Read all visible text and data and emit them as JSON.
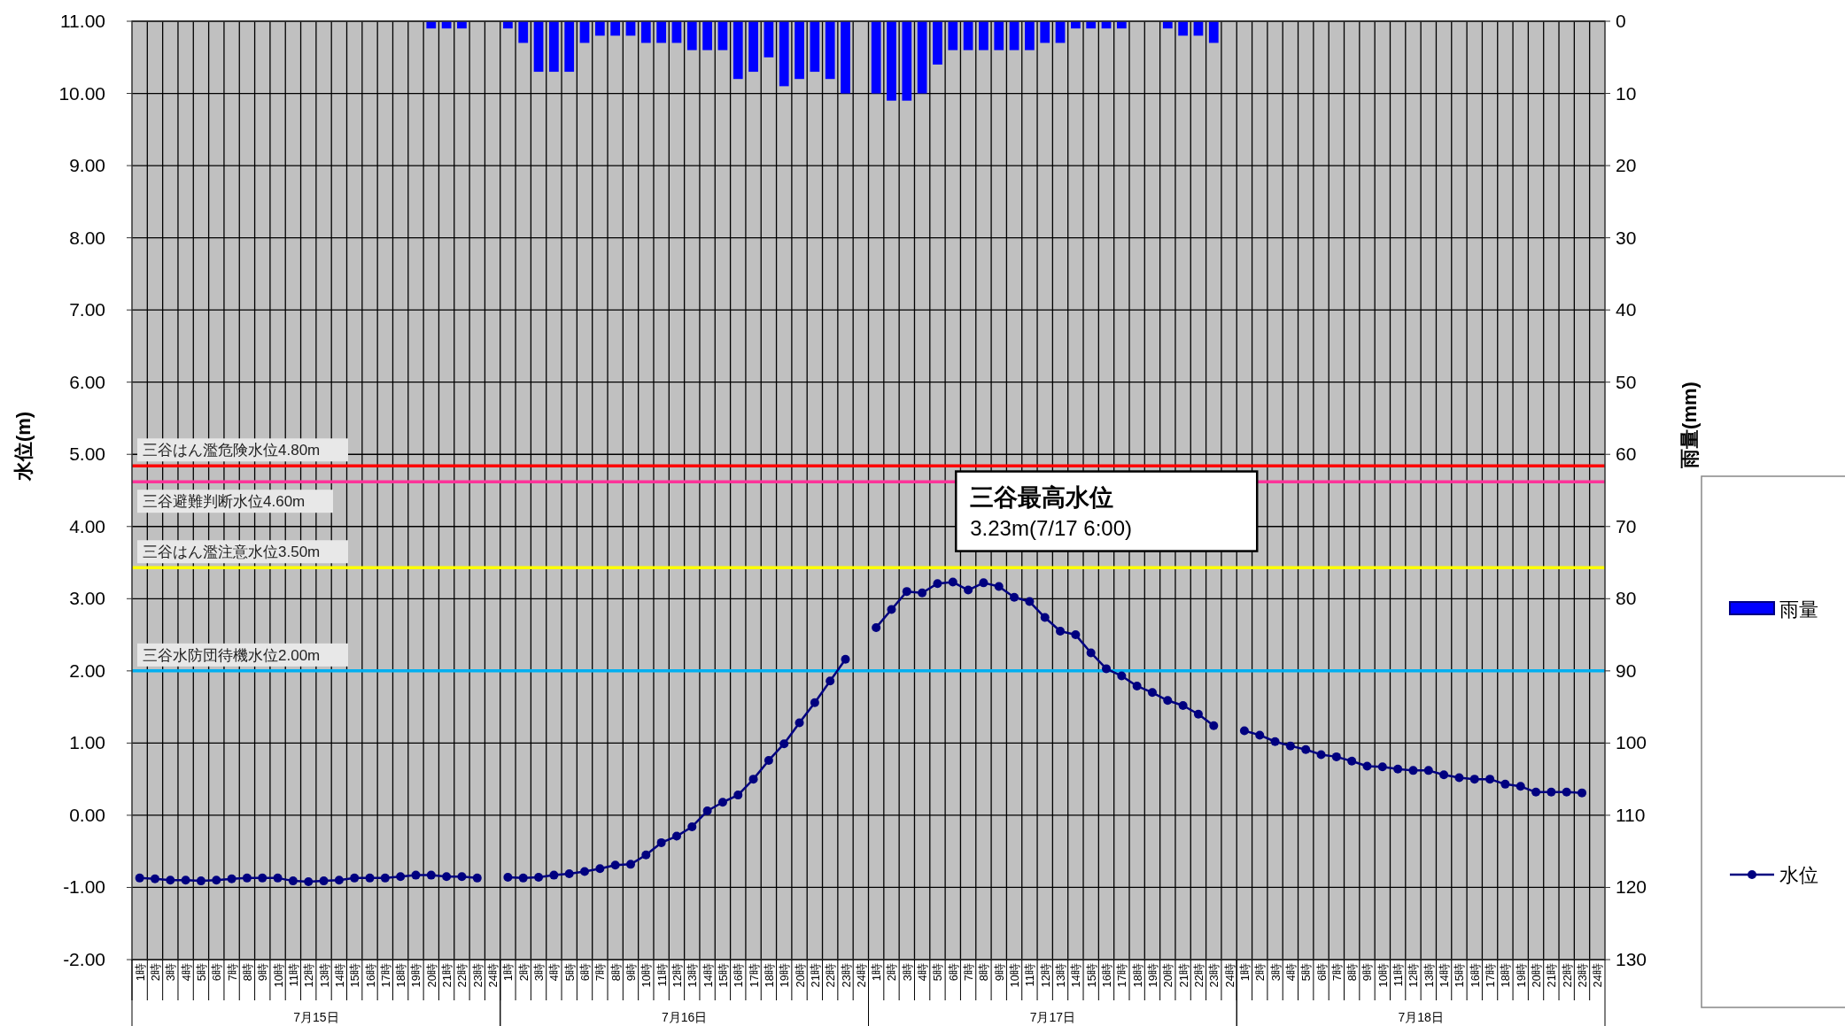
{
  "chart_data": {
    "type": "bar",
    "ylabel": "水位(m)",
    "y2label": "雨量(mm)",
    "categories": [
      "1時",
      "2時",
      "3時",
      "4時",
      "5時",
      "6時",
      "7時",
      "8時",
      "9時",
      "10時",
      "11時",
      "12時",
      "13時",
      "14時",
      "15時",
      "16時",
      "17時",
      "18時",
      "19時",
      "20時",
      "21時",
      "22時",
      "23時",
      "24時",
      "1時",
      "2時",
      "3時",
      "4時",
      "5時",
      "6時",
      "7時",
      "8時",
      "9時",
      "10時",
      "11時",
      "12時",
      "13時",
      "14時",
      "15時",
      "16時",
      "17時",
      "18時",
      "19時",
      "20時",
      "21時",
      "22時",
      "23時",
      "24時",
      "1時",
      "2時",
      "3時",
      "4時",
      "5時",
      "6時",
      "7時",
      "8時",
      "9時",
      "10時",
      "11時",
      "12時",
      "13時",
      "14時",
      "15時",
      "16時",
      "17時",
      "18時",
      "19時",
      "20時",
      "21時",
      "22時",
      "23時",
      "24時",
      "1時",
      "2時",
      "3時",
      "4時",
      "5時",
      "6時",
      "7時",
      "8時",
      "9時",
      "10時",
      "11時",
      "12時",
      "13時",
      "14時",
      "15時",
      "16時",
      "17時",
      "18時",
      "19時",
      "20時",
      "21時",
      "22時",
      "23時",
      "24時"
    ],
    "series": [
      {
        "name": "雨量",
        "axis": "y2",
        "color": "#0000ff",
        "values": [
          null,
          null,
          null,
          null,
          null,
          null,
          null,
          null,
          null,
          null,
          null,
          null,
          null,
          null,
          null,
          null,
          null,
          null,
          null,
          1,
          1,
          1,
          null,
          null,
          1,
          3,
          7,
          7,
          7,
          3,
          2,
          2,
          2,
          3,
          3,
          3,
          4,
          4,
          4,
          8,
          7,
          5,
          9,
          8,
          7,
          8,
          10,
          null,
          10,
          11,
          11,
          10,
          6,
          4,
          4,
          4,
          4,
          4,
          4,
          3,
          3,
          1,
          1,
          1,
          1,
          null,
          null,
          1,
          2,
          2,
          3,
          null,
          null,
          null,
          null,
          null,
          null,
          null,
          null,
          null,
          null,
          null,
          null,
          null,
          null,
          null,
          null,
          null,
          null,
          null,
          null,
          null,
          null,
          null,
          null,
          null
        ]
      },
      {
        "name": "水位",
        "type": "line",
        "color": "#000080",
        "values": [
          -0.87,
          -0.88,
          -0.9,
          -0.9,
          -0.91,
          -0.9,
          -0.88,
          -0.87,
          -0.87,
          -0.87,
          -0.91,
          -0.92,
          -0.91,
          -0.9,
          -0.87,
          -0.87,
          -0.87,
          -0.85,
          -0.83,
          -0.83,
          -0.85,
          -0.85,
          -0.87,
          null,
          -0.86,
          -0.87,
          -0.86,
          -0.83,
          -0.81,
          -0.78,
          -0.74,
          -0.69,
          -0.68,
          -0.55,
          -0.38,
          -0.29,
          -0.16,
          0.06,
          0.18,
          0.28,
          0.5,
          0.76,
          0.99,
          1.28,
          1.56,
          1.86,
          2.16,
          null,
          2.6,
          2.85,
          3.1,
          3.08,
          3.21,
          3.23,
          3.12,
          3.22,
          3.17,
          3.02,
          2.96,
          2.74,
          2.55,
          2.5,
          2.25,
          2.03,
          1.93,
          1.79,
          1.7,
          1.59,
          1.52,
          1.4,
          1.24,
          null,
          1.17,
          1.11,
          1.02,
          0.96,
          0.91,
          0.84,
          0.81,
          0.75,
          0.68,
          0.67,
          0.64,
          0.62,
          0.62,
          0.56,
          0.52,
          0.5,
          0.5,
          0.43,
          0.4,
          0.32,
          0.32,
          0.32,
          0.31,
          null
        ]
      }
    ],
    "ylim": [
      -2,
      11
    ],
    "yticks": [
      {
        "value": -2,
        "label": "-2.00"
      },
      {
        "value": -1,
        "label": "-1.00"
      },
      {
        "value": 0,
        "label": "0.00"
      },
      {
        "value": 1,
        "label": "1.00"
      },
      {
        "value": 2,
        "label": "2.00"
      },
      {
        "value": 3,
        "label": "3.00"
      },
      {
        "value": 4,
        "label": "4.00"
      },
      {
        "value": 5,
        "label": "5.00"
      },
      {
        "value": 6,
        "label": "6.00"
      },
      {
        "value": 7,
        "label": "7.00"
      },
      {
        "value": 8,
        "label": "8.00"
      },
      {
        "value": 9,
        "label": "9.00"
      },
      {
        "value": 10,
        "label": "10.00"
      },
      {
        "value": 11,
        "label": "11.00"
      }
    ],
    "y2lim": [
      130,
      0
    ],
    "y2ticks": [
      0,
      10,
      20,
      30,
      40,
      50,
      60,
      70,
      80,
      90,
      100,
      110,
      120,
      130
    ],
    "ref_lines": [
      {
        "axis": "y",
        "value": 4.84,
        "label": "三谷はん濫危険水位4.80m",
        "color": "#ff0000"
      },
      {
        "axis": "y",
        "value": 4.62,
        "label": "三谷避難判断水位4.60m",
        "color": "#ff3399"
      },
      {
        "axis": "y",
        "value": 3.43,
        "label": "三谷はん濫注意水位3.50m",
        "color": "#ffff00"
      },
      {
        "axis": "y",
        "value": 2.0,
        "label": "三谷水防団待機水位2.00m",
        "color": "#00b0f0"
      }
    ],
    "annotations": [
      {
        "text": "三谷最高水位\n3.23m(7/17 6:00)"
      },
      "7月15日",
      "7月16日",
      "7月17日",
      "7月18日"
    ],
    "grid": true,
    "marker": "circle",
    "legend": "right"
  }
}
